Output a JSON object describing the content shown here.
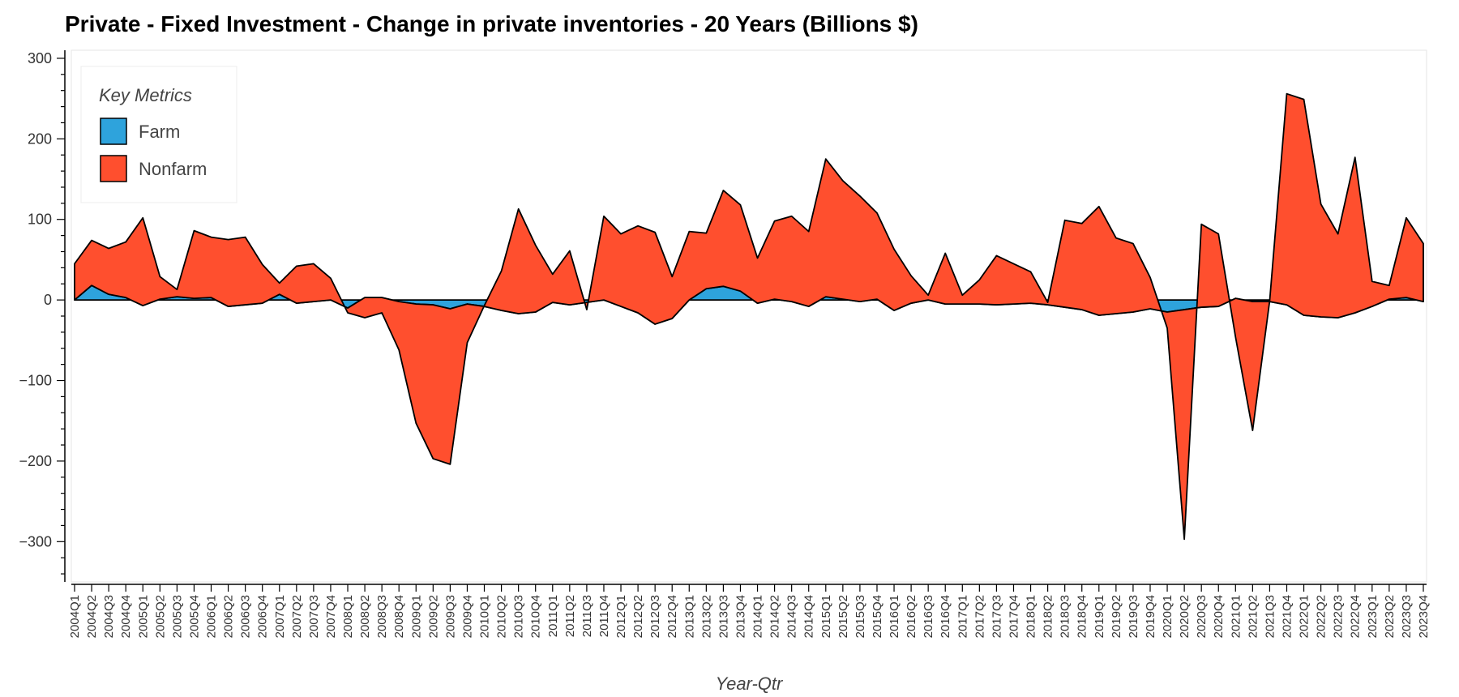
{
  "chart_data": {
    "type": "area",
    "title": "Private - Fixed Investment - Change in private inventories - 20 Years (Billions $)",
    "xlabel": "Year-Qtr",
    "ylabel": "",
    "ylim": [
      -350,
      310
    ],
    "yticks": [
      -300,
      -200,
      -100,
      0,
      100,
      200,
      300
    ],
    "legend": {
      "title": "Key Metrics",
      "position": "top-left"
    },
    "grid": false,
    "stacked": true,
    "categories": [
      "2004Q1",
      "2004Q2",
      "2004Q3",
      "2004Q4",
      "2005Q1",
      "2005Q2",
      "2005Q3",
      "2005Q4",
      "2006Q1",
      "2006Q2",
      "2006Q3",
      "2006Q4",
      "2007Q1",
      "2007Q2",
      "2007Q3",
      "2007Q4",
      "2008Q1",
      "2008Q2",
      "2008Q3",
      "2008Q4",
      "2009Q1",
      "2009Q2",
      "2009Q3",
      "2009Q4",
      "2010Q1",
      "2010Q2",
      "2010Q3",
      "2010Q4",
      "2011Q1",
      "2011Q2",
      "2011Q3",
      "2011Q4",
      "2012Q1",
      "2012Q2",
      "2012Q3",
      "2012Q4",
      "2013Q1",
      "2013Q2",
      "2013Q3",
      "2013Q4",
      "2014Q1",
      "2014Q2",
      "2014Q3",
      "2014Q4",
      "2015Q1",
      "2015Q2",
      "2015Q3",
      "2015Q4",
      "2016Q1",
      "2016Q2",
      "2016Q3",
      "2016Q4",
      "2017Q1",
      "2017Q2",
      "2017Q3",
      "2017Q4",
      "2018Q1",
      "2018Q2",
      "2018Q3",
      "2018Q4",
      "2019Q1",
      "2019Q2",
      "2019Q3",
      "2019Q4",
      "2020Q1",
      "2020Q2",
      "2020Q3",
      "2020Q4",
      "2021Q1",
      "2021Q2",
      "2021Q3",
      "2021Q4",
      "2022Q1",
      "2022Q2",
      "2022Q3",
      "2022Q4",
      "2023Q1",
      "2023Q2",
      "2023Q3",
      "2023Q4"
    ],
    "series": [
      {
        "name": "Farm",
        "color": "#2ea3dc",
        "values": [
          0,
          18,
          7,
          3,
          -7,
          1,
          4,
          2,
          3,
          -8,
          -6,
          -4,
          7,
          -4,
          -2,
          0,
          -10,
          3,
          3,
          -2,
          -5,
          -6,
          -11,
          -5,
          -8,
          -13,
          -17,
          -15,
          -3,
          -6,
          -3,
          0,
          -8,
          -16,
          -30,
          -23,
          0,
          14,
          17,
          11,
          -4,
          1,
          -2,
          -8,
          4,
          1,
          -2,
          1,
          -13,
          -4,
          0,
          -5,
          -5,
          -5,
          -6,
          -5,
          -4,
          -6,
          -9,
          -12,
          -19,
          -17,
          -15,
          -11,
          -15,
          -12,
          -9,
          -8,
          2,
          -2,
          -2,
          -6,
          -19,
          -21,
          -22,
          -16,
          -8,
          1,
          3,
          -2
        ]
      },
      {
        "name": "Nonfarm",
        "color": "#ff4f2e",
        "values": [
          45,
          56,
          57,
          69,
          109,
          28,
          9,
          84,
          75,
          83,
          84,
          48,
          14,
          46,
          47,
          27,
          -6,
          -25,
          -19,
          -60,
          -148,
          -191,
          -193,
          -48,
          1,
          49,
          130,
          83,
          35,
          67,
          -9,
          104,
          90,
          108,
          114,
          52,
          85,
          69,
          119,
          107,
          56,
          97,
          106,
          93,
          171,
          147,
          131,
          107,
          76,
          34,
          6,
          63,
          11,
          30,
          61,
          50,
          39,
          3,
          108,
          107,
          135,
          94,
          85,
          39,
          -20,
          -285,
          103,
          90,
          -48,
          -160,
          1,
          262,
          268,
          140,
          104,
          193,
          31,
          17,
          99,
          72
        ]
      }
    ]
  }
}
